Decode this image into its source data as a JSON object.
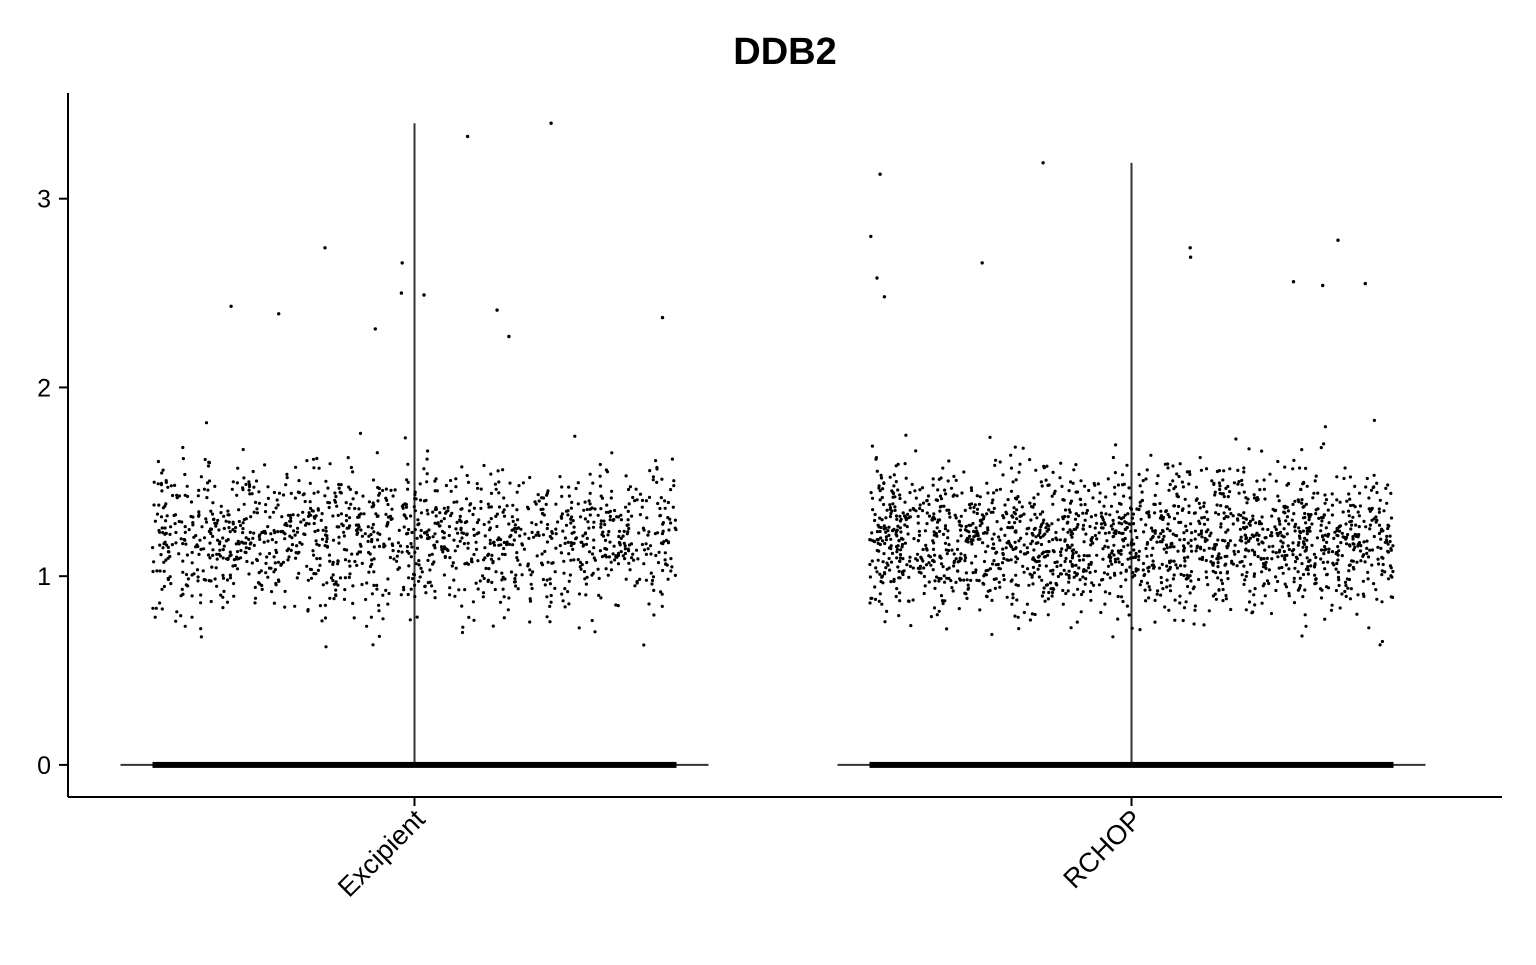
{
  "chart_data": {
    "type": "scatter",
    "subtype": "violin-with-jittered-points",
    "title": "DDB2",
    "xlabel": "",
    "ylabel": "",
    "categories": [
      "Excipient",
      "RCHOP"
    ],
    "y_ticks": [
      0,
      1,
      2,
      3
    ],
    "y_tick_labels": [
      "0",
      "1",
      "2",
      "3"
    ],
    "ylim": [
      -0.17,
      3.56
    ],
    "grid": false,
    "legend": "none",
    "colors": {
      "points": "#000000",
      "axes": "#000000",
      "violin": "#333333"
    },
    "series": [
      {
        "category": "Excipient",
        "max": 3.4,
        "notable_points": [
          {
            "x": "Excipient",
            "y": 3.4
          },
          {
            "x": "Excipient",
            "y": 3.33
          },
          {
            "x": "Excipient",
            "y": 2.74
          },
          {
            "x": "Excipient",
            "y": 2.66
          },
          {
            "x": "Excipient",
            "y": 2.5
          },
          {
            "x": "Excipient",
            "y": 2.49
          },
          {
            "x": "Excipient",
            "y": 2.43
          },
          {
            "x": "Excipient",
            "y": 2.41
          },
          {
            "x": "Excipient",
            "y": 2.39
          },
          {
            "x": "Excipient",
            "y": 2.37
          },
          {
            "x": "Excipient",
            "y": 2.31
          },
          {
            "x": "Excipient",
            "y": 2.27
          }
        ],
        "nonzero_range": [
          0.58,
          2.2
        ],
        "nonzero_center": 1.2,
        "zero_value": 0
      },
      {
        "category": "RCHOP",
        "max": 3.19,
        "notable_points": [
          {
            "x": "RCHOP",
            "y": 3.19
          },
          {
            "x": "RCHOP",
            "y": 3.13
          },
          {
            "x": "RCHOP",
            "y": 2.8
          },
          {
            "x": "RCHOP",
            "y": 2.78
          },
          {
            "x": "RCHOP",
            "y": 2.74
          },
          {
            "x": "RCHOP",
            "y": 2.69
          },
          {
            "x": "RCHOP",
            "y": 2.66
          },
          {
            "x": "RCHOP",
            "y": 2.58
          },
          {
            "x": "RCHOP",
            "y": 2.56
          },
          {
            "x": "RCHOP",
            "y": 2.55
          },
          {
            "x": "RCHOP",
            "y": 2.54
          },
          {
            "x": "RCHOP",
            "y": 2.48
          }
        ],
        "nonzero_range": [
          0.6,
          2.35
        ],
        "nonzero_center": 1.2,
        "zero_value": 0
      }
    ]
  }
}
